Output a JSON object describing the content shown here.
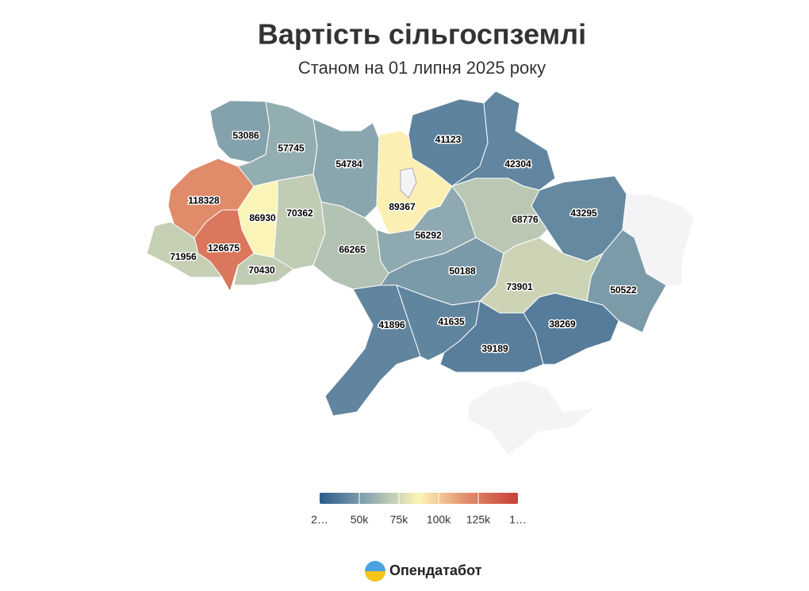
{
  "chart_data": {
    "type": "choropleth",
    "title": "Вартість сільгоспземлі",
    "subtitle": "Станом на 01 липня 2025 року",
    "values": [
      53086,
      57745,
      54784,
      89367,
      41123,
      42304,
      43295,
      null,
      50522,
      118328,
      86930,
      70362,
      126675,
      71956,
      70430,
      66265,
      56292,
      68776,
      50188,
      73901,
      41896,
      41635,
      39189,
      38269,
      null
    ],
    "colorscale": [
      "#2b5a8c",
      "#8eaab0",
      "#fdf5b8",
      "#e08a68",
      "#c7403a"
    ],
    "no_data_color": "#f4f4f7",
    "colorlim": [
      25000,
      150000
    ],
    "colorticks": [
      {
        "value": 25000,
        "label": "2…"
      },
      {
        "value": 50000,
        "label": "50k"
      },
      {
        "value": 75000,
        "label": "75k"
      },
      {
        "value": 100000,
        "label": "100k"
      },
      {
        "value": 125000,
        "label": "125k"
      },
      {
        "value": 150000,
        "label": "1…"
      }
    ],
    "brand": "Опендатабот"
  }
}
